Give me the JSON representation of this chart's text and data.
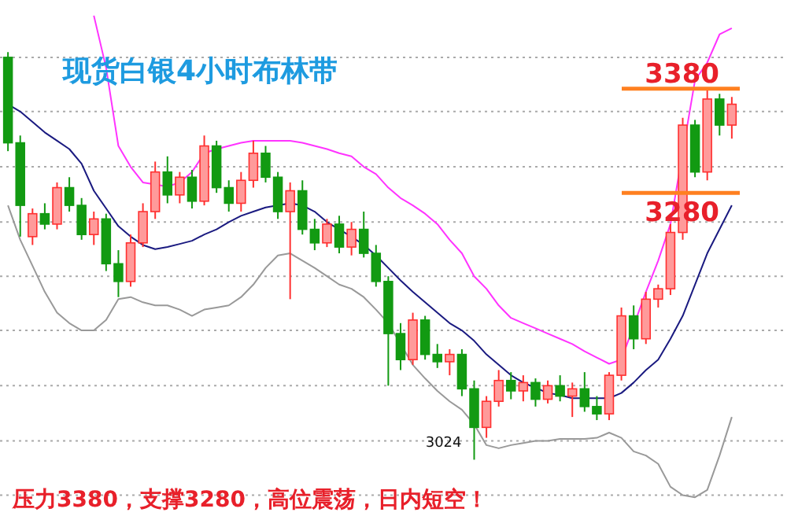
{
  "chart_data": {
    "type": "candlestick",
    "title": "现货白银4小时布林带",
    "categories": [
      null,
      null,
      null,
      null,
      null,
      null,
      null,
      null,
      null,
      null,
      null,
      null,
      null,
      null,
      null,
      null,
      null,
      null,
      null,
      null,
      null,
      null,
      null,
      null,
      null,
      null,
      null,
      null,
      null,
      null,
      null,
      null,
      null,
      null,
      null,
      null,
      null,
      null,
      null,
      null,
      null,
      null,
      null,
      null,
      null,
      null,
      null,
      null,
      null,
      null,
      null,
      null,
      null,
      null,
      null,
      null,
      null,
      null,
      null,
      null
    ],
    "ylim": [
      2970,
      3465
    ],
    "yticks": [
      {
        "value": 3410,
        "label": null
      },
      {
        "value": 3358,
        "label": null
      },
      {
        "value": 3305,
        "label": null
      },
      {
        "value": 3252,
        "label": null
      },
      {
        "value": 3200,
        "label": null
      },
      {
        "value": 3148,
        "label": null
      },
      {
        "value": 3095,
        "label": null
      },
      {
        "value": 3042,
        "label": null
      },
      {
        "value": 2990,
        "label": null
      }
    ],
    "grid": "y",
    "series": [
      {
        "colors": [
          "#129a12",
          "#129a12",
          "#ff3030",
          "#129a12",
          "#ff3030",
          "#129a12",
          "#129a12",
          "#ff3030",
          "#129a12",
          "#129a12",
          "#ff3030",
          "#ff3030",
          "#ff3030",
          "#129a12",
          "#ff3030",
          "#129a12",
          "#ff3030",
          "#129a12",
          "#129a12",
          "#ff3030",
          "#ff3030",
          "#129a12",
          "#129a12",
          "#ff3030",
          "#129a12",
          "#129a12",
          "#ff3030",
          "#129a12",
          "#ff3030",
          "#129a12",
          "#129a12",
          "#129a12",
          "#129a12",
          "#ff3030",
          "#129a12",
          "#129a12",
          "#ff3030",
          "#129a12",
          "#129a12",
          "#ff3030",
          "#ff3030",
          "#129a12",
          "#ff3030",
          "#129a12",
          "#ff3030",
          "#129a12",
          "#ff3030",
          "#129a12",
          "#129a12",
          "#ff3030",
          "#ff3030",
          "#129a12",
          "#ff3030",
          "#ff3030",
          "#ff3030",
          "#ff3030",
          "#129a12",
          "#ff3030",
          "#129a12",
          "#ff3030"
        ],
        "ohlc": [
          [
            3410,
            3415,
            3320,
            3328
          ],
          [
            3328,
            3335,
            3238,
            3268
          ],
          [
            3238,
            3265,
            3230,
            3260
          ],
          [
            3260,
            3270,
            3245,
            3250
          ],
          [
            3250,
            3290,
            3245,
            3285
          ],
          [
            3285,
            3295,
            3262,
            3268
          ],
          [
            3268,
            3275,
            3235,
            3240
          ],
          [
            3240,
            3262,
            3230,
            3255
          ],
          [
            3255,
            3260,
            3205,
            3212
          ],
          [
            3212,
            3225,
            3180,
            3195
          ],
          [
            3195,
            3240,
            3190,
            3232
          ],
          [
            3232,
            3270,
            3228,
            3262
          ],
          [
            3262,
            3310,
            3255,
            3300
          ],
          [
            3300,
            3315,
            3270,
            3278
          ],
          [
            3278,
            3300,
            3270,
            3295
          ],
          [
            3295,
            3302,
            3265,
            3272
          ],
          [
            3272,
            3335,
            3268,
            3325
          ],
          [
            3325,
            3330,
            3280,
            3285
          ],
          [
            3285,
            3292,
            3262,
            3270
          ],
          [
            3270,
            3300,
            3262,
            3292
          ],
          [
            3292,
            3330,
            3285,
            3318
          ],
          [
            3318,
            3325,
            3290,
            3295
          ],
          [
            3295,
            3300,
            3255,
            3262
          ],
          [
            3262,
            3290,
            3178,
            3282
          ],
          [
            3282,
            3292,
            3240,
            3245
          ],
          [
            3245,
            3255,
            3225,
            3232
          ],
          [
            3232,
            3255,
            3228,
            3250
          ],
          [
            3250,
            3258,
            3222,
            3228
          ],
          [
            3228,
            3252,
            3220,
            3245
          ],
          [
            3245,
            3262,
            3218,
            3222
          ],
          [
            3222,
            3230,
            3190,
            3195
          ],
          [
            3195,
            3200,
            3095,
            3145
          ],
          [
            3145,
            3155,
            3110,
            3120
          ],
          [
            3120,
            3165,
            3115,
            3158
          ],
          [
            3158,
            3162,
            3120,
            3125
          ],
          [
            3125,
            3135,
            3112,
            3118
          ],
          [
            3118,
            3130,
            3105,
            3125
          ],
          [
            3125,
            3130,
            3085,
            3092
          ],
          [
            3092,
            3100,
            3024,
            3055
          ],
          [
            3055,
            3085,
            3045,
            3080
          ],
          [
            3080,
            3110,
            3075,
            3100
          ],
          [
            3100,
            3108,
            3082,
            3090
          ],
          [
            3090,
            3105,
            3080,
            3098
          ],
          [
            3098,
            3102,
            3075,
            3082
          ],
          [
            3082,
            3100,
            3078,
            3095
          ],
          [
            3095,
            3105,
            3080,
            3085
          ],
          [
            3085,
            3098,
            3065,
            3092
          ],
          [
            3092,
            3108,
            3070,
            3075
          ],
          [
            3075,
            3085,
            3062,
            3068
          ],
          [
            3068,
            3108,
            3062,
            3105
          ],
          [
            3105,
            3170,
            3100,
            3162
          ],
          [
            3162,
            3172,
            3130,
            3140
          ],
          [
            3140,
            3185,
            3135,
            3178
          ],
          [
            3178,
            3192,
            3170,
            3188
          ],
          [
            3188,
            3250,
            3182,
            3242
          ],
          [
            3242,
            3352,
            3235,
            3345
          ],
          [
            3345,
            3350,
            3295,
            3300
          ],
          [
            3300,
            3380,
            3292,
            3370
          ],
          [
            3370,
            3375,
            3335,
            3345
          ],
          [
            3345,
            3372,
            3332,
            3365
          ]
        ]
      },
      {
        "type": "line",
        "color": "#ff33ff",
        "values": [
          null,
          null,
          null,
          null,
          null,
          null,
          null,
          3450,
          3400,
          3325,
          3305,
          3290,
          3288,
          3286,
          3290,
          3300,
          3318,
          3322,
          3325,
          3328,
          3330,
          3330,
          3330,
          3330,
          3328,
          3325,
          3322,
          3318,
          3315,
          3305,
          3298,
          3285,
          3275,
          3268,
          3260,
          3250,
          3235,
          3222,
          3200,
          3188,
          3172,
          3160,
          3155,
          3150,
          3145,
          3140,
          3135,
          3128,
          3122,
          3116,
          3120,
          null,
          3185,
          3215,
          3250,
          null,
          3388,
          3405,
          3432,
          3438
        ]
      },
      {
        "type": "line",
        "color": "#1a1a80",
        "values": [
          3365,
          3358,
          3348,
          3338,
          3330,
          3322,
          3308,
          3282,
          3265,
          3248,
          3238,
          3230,
          3226,
          3228,
          3231,
          3234,
          3240,
          3245,
          3252,
          3258,
          3262,
          3266,
          3268,
          3270,
          3268,
          3262,
          3252,
          3245,
          3238,
          3230,
          3220,
          3208,
          3196,
          3185,
          3175,
          3165,
          3155,
          3148,
          3138,
          3125,
          3115,
          3105,
          3098,
          3093,
          3088,
          3086,
          3083,
          3083,
          3083,
          3083,
          3088,
          3098,
          3110,
          3120,
          3140,
          3162,
          3192,
          3222,
          3245,
          3268
        ]
      },
      {
        "type": "line",
        "color": "#999999",
        "values": [
          3268,
          3235,
          3210,
          3185,
          3165,
          3155,
          3148,
          3148,
          3158,
          3178,
          3180,
          3175,
          3172,
          3172,
          3168,
          3162,
          3168,
          3170,
          3172,
          3180,
          3192,
          3208,
          3220,
          3222,
          3215,
          3208,
          3200,
          3192,
          3188,
          3180,
          3168,
          3155,
          null,
          3115,
          3102,
          3090,
          3080,
          3072,
          3058,
          3038,
          3035,
          3038,
          3040,
          3042,
          3042,
          3044,
          3044,
          3044,
          3045,
          3050,
          3045,
          3032,
          3028,
          3020,
          2998,
          2990,
          2988,
          2995,
          3028,
          3065
        ]
      }
    ],
    "ref_lines": [
      {
        "axis": "y",
        "value": 3380,
        "label": "3380",
        "color": "#ff8020"
      },
      {
        "axis": "y",
        "value": 3280,
        "label": "3280",
        "color": "#ff8020"
      }
    ],
    "annotations": [
      "3024",
      "压力3380，支撑3280，高位震荡，日内短空！"
    ]
  }
}
